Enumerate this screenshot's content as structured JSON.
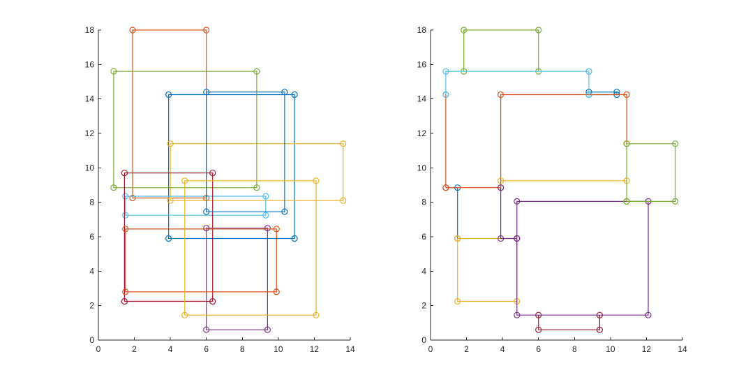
{
  "chart_data": [
    {
      "type": "scatter",
      "subtype": "rectangle-outlines-with-circle-markers",
      "title": "",
      "xlabel": "",
      "ylabel": "",
      "xlim": [
        0,
        14
      ],
      "ylim": [
        0,
        18
      ],
      "xticks": [
        "0",
        "2",
        "4",
        "6",
        "8",
        "10",
        "12",
        "14"
      ],
      "yticks": [
        "0",
        "2",
        "4",
        "6",
        "8",
        "10",
        "12",
        "14",
        "16",
        "18"
      ],
      "grid": false,
      "series": [
        {
          "color": "#0072BD",
          "points": [
            [
              3.9,
              5.9
            ],
            [
              10.9,
              5.9
            ],
            [
              10.9,
              14.25
            ],
            [
              3.9,
              14.25
            ]
          ]
        },
        {
          "color": "#D95319",
          "points": [
            [
              1.9,
              8.25
            ],
            [
              6.0,
              8.25
            ],
            [
              6.0,
              18.0
            ],
            [
              1.9,
              18.0
            ]
          ]
        },
        {
          "color": "#EDB120",
          "points": [
            [
              4.0,
              8.1
            ],
            [
              13.6,
              8.1
            ],
            [
              13.6,
              11.4
            ],
            [
              4.0,
              11.4
            ]
          ]
        },
        {
          "color": "#7E2F8E",
          "points": [
            [
              6.0,
              0.6
            ],
            [
              9.4,
              0.6
            ],
            [
              9.4,
              6.5
            ],
            [
              6.0,
              6.5
            ]
          ]
        },
        {
          "color": "#77AC30",
          "points": [
            [
              0.85,
              8.85
            ],
            [
              8.8,
              8.85
            ],
            [
              8.8,
              15.6
            ],
            [
              0.85,
              15.6
            ]
          ]
        },
        {
          "color": "#4DBEEE",
          "points": [
            [
              1.5,
              7.25
            ],
            [
              9.3,
              7.25
            ],
            [
              9.3,
              8.35
            ],
            [
              1.5,
              8.35
            ]
          ]
        },
        {
          "color": "#A2142F",
          "points": [
            [
              1.45,
              2.25
            ],
            [
              6.35,
              2.25
            ],
            [
              6.35,
              9.7
            ],
            [
              1.45,
              9.7
            ]
          ]
        },
        {
          "color": "#0072BD",
          "points": [
            [
              6.0,
              7.45
            ],
            [
              10.35,
              7.45
            ],
            [
              10.35,
              14.4
            ],
            [
              6.0,
              14.4
            ]
          ]
        },
        {
          "color": "#D95319",
          "points": [
            [
              1.5,
              2.8
            ],
            [
              9.9,
              2.8
            ],
            [
              9.9,
              6.45
            ],
            [
              1.5,
              6.45
            ]
          ]
        },
        {
          "color": "#EDB120",
          "points": [
            [
              4.8,
              1.45
            ],
            [
              12.1,
              1.45
            ],
            [
              12.1,
              9.25
            ],
            [
              4.8,
              9.25
            ]
          ]
        }
      ]
    },
    {
      "type": "scatter",
      "subtype": "rectangle-outlines-with-circle-markers",
      "title": "",
      "xlabel": "",
      "ylabel": "",
      "xlim": [
        0,
        14
      ],
      "ylim": [
        0,
        18
      ],
      "xticks": [
        "0",
        "2",
        "4",
        "6",
        "8",
        "10",
        "12",
        "14"
      ],
      "yticks": [
        "0",
        "2",
        "4",
        "6",
        "8",
        "10",
        "12",
        "14",
        "16",
        "18"
      ],
      "grid": false,
      "series": [
        {
          "color": "#0072BD",
          "points": [
            [
              0.85,
              8.85
            ],
            [
              1.5,
              8.85
            ],
            [
              1.5,
              5.9
            ]
          ]
        },
        {
          "color": "#0072BD",
          "points": [
            [
              8.8,
              14.25
            ],
            [
              10.35,
              14.25
            ],
            [
              10.35,
              14.4
            ],
            [
              8.8,
              14.4
            ]
          ]
        },
        {
          "color": "#D95319",
          "points": [
            [
              0.85,
              8.85
            ],
            [
              3.9,
              8.85
            ],
            [
              3.9,
              14.25
            ],
            [
              10.9,
              14.25
            ],
            [
              10.9,
              11.4
            ]
          ]
        },
        {
          "color": "#D95319",
          "points": [
            [
              0.85,
              8.85
            ],
            [
              0.85,
              14.25
            ]
          ]
        },
        {
          "color": "#EDB120",
          "points": [
            [
              1.5,
              5.9
            ],
            [
              1.5,
              2.25
            ],
            [
              4.8,
              2.25
            ],
            [
              4.8,
              5.9
            ],
            [
              1.5,
              5.9
            ]
          ]
        },
        {
          "color": "#EDB120",
          "points": [
            [
              3.9,
              9.25
            ],
            [
              10.9,
              9.25
            ]
          ]
        },
        {
          "color": "#7E2F8E",
          "points": [
            [
              3.9,
              8.85
            ],
            [
              3.9,
              5.9
            ],
            [
              4.8,
              5.9
            ],
            [
              4.8,
              8.05
            ],
            [
              12.1,
              8.05
            ],
            [
              12.1,
              1.45
            ],
            [
              4.8,
              1.45
            ],
            [
              4.8,
              5.9
            ]
          ]
        },
        {
          "color": "#77AC30",
          "points": [
            [
              1.85,
              15.6
            ],
            [
              1.85,
              18.0
            ],
            [
              6.0,
              18.0
            ],
            [
              6.0,
              15.6
            ]
          ]
        },
        {
          "color": "#77AC30",
          "points": [
            [
              10.9,
              8.05
            ],
            [
              10.9,
              11.4
            ],
            [
              13.6,
              11.4
            ],
            [
              13.6,
              8.05
            ],
            [
              10.9,
              8.05
            ]
          ]
        },
        {
          "color": "#4DBEEE",
          "points": [
            [
              0.85,
              14.25
            ],
            [
              0.85,
              15.6
            ],
            [
              8.8,
              15.6
            ],
            [
              8.8,
              14.25
            ]
          ]
        },
        {
          "color": "#A2142F",
          "points": [
            [
              6.0,
              1.45
            ],
            [
              6.0,
              0.6
            ],
            [
              9.4,
              0.6
            ],
            [
              9.4,
              1.45
            ]
          ]
        }
      ]
    }
  ]
}
